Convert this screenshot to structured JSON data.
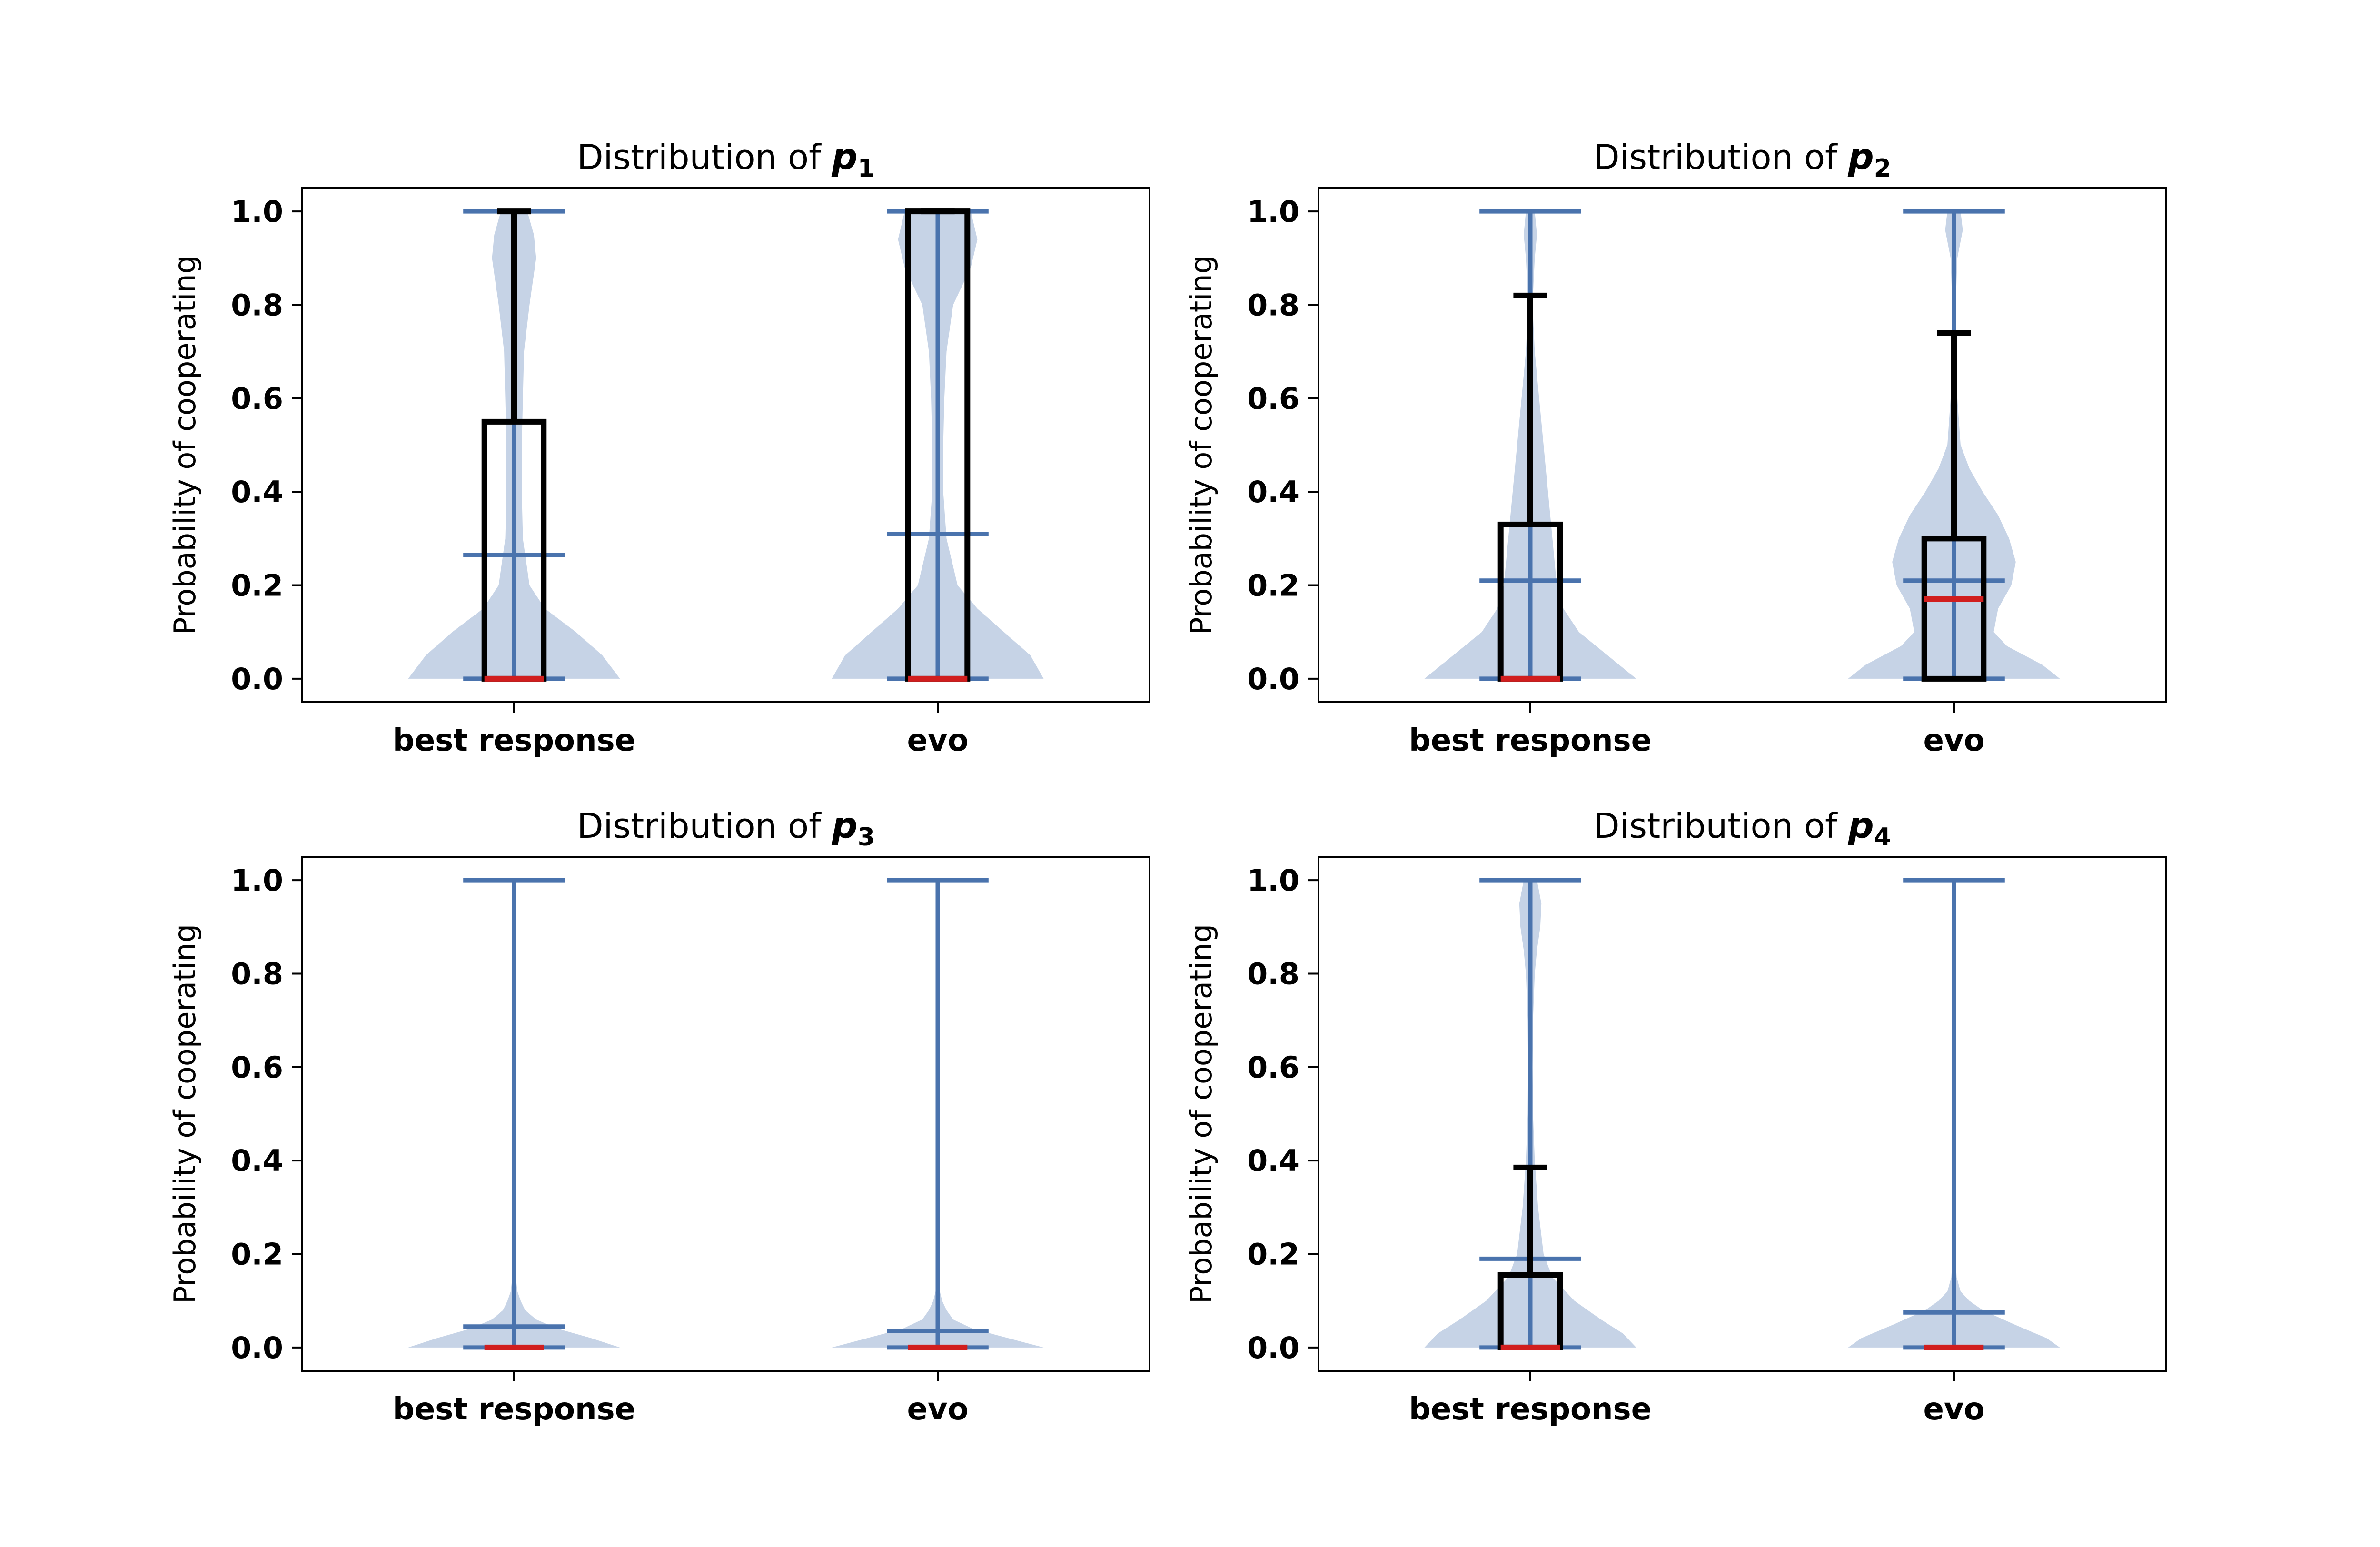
{
  "chart_data": [
    {
      "type": "violin",
      "title": {
        "prefix": "Distribution of",
        "symbol": "p",
        "subscript": "1"
      },
      "ylabel": "Probability of cooperating",
      "xlabel": "",
      "ylim": [
        -0.05,
        1.05
      ],
      "yticks": [
        "0.0",
        "0.2",
        "0.4",
        "0.6",
        "0.8",
        "1.0"
      ],
      "grid": false,
      "categories": [
        "best response",
        "evo"
      ],
      "series": [
        {
          "min": 0.0,
          "max": 1.0,
          "mean": 0.265,
          "median": 0.0,
          "box": {
            "q1": 0.0,
            "q3": 0.55,
            "whisker_high": 1.0
          },
          "density": [
            [
              0.0,
              0.48
            ],
            [
              0.05,
              0.4
            ],
            [
              0.1,
              0.28
            ],
            [
              0.15,
              0.14
            ],
            [
              0.2,
              0.07
            ],
            [
              0.3,
              0.04
            ],
            [
              0.4,
              0.035
            ],
            [
              0.5,
              0.035
            ],
            [
              0.6,
              0.04
            ],
            [
              0.7,
              0.045
            ],
            [
              0.8,
              0.07
            ],
            [
              0.9,
              0.1
            ],
            [
              0.95,
              0.09
            ],
            [
              1.0,
              0.06
            ]
          ]
        },
        {
          "min": 0.0,
          "max": 1.0,
          "mean": 0.31,
          "median": 0.0,
          "box": {
            "q1": 0.0,
            "q3": 1.0,
            "whisker_high": 1.0
          },
          "density": [
            [
              0.0,
              0.48
            ],
            [
              0.05,
              0.42
            ],
            [
              0.1,
              0.3
            ],
            [
              0.15,
              0.18
            ],
            [
              0.2,
              0.09
            ],
            [
              0.3,
              0.04
            ],
            [
              0.4,
              0.025
            ],
            [
              0.5,
              0.025
            ],
            [
              0.6,
              0.03
            ],
            [
              0.7,
              0.04
            ],
            [
              0.8,
              0.07
            ],
            [
              0.88,
              0.15
            ],
            [
              0.94,
              0.18
            ],
            [
              1.0,
              0.15
            ]
          ]
        }
      ]
    },
    {
      "type": "violin",
      "title": {
        "prefix": "Distribution of",
        "symbol": "p",
        "subscript": "2"
      },
      "ylabel": "Probability of cooperating",
      "xlabel": "",
      "ylim": [
        -0.05,
        1.05
      ],
      "yticks": [
        "0.0",
        "0.2",
        "0.4",
        "0.6",
        "0.8",
        "1.0"
      ],
      "grid": false,
      "categories": [
        "best response",
        "evo"
      ],
      "series": [
        {
          "min": 0.0,
          "max": 1.0,
          "mean": 0.21,
          "median": 0.0,
          "box": {
            "q1": 0.0,
            "q3": 0.33,
            "whisker_high": 0.82
          },
          "density": [
            [
              0.0,
              0.48
            ],
            [
              0.05,
              0.35
            ],
            [
              0.1,
              0.22
            ],
            [
              0.15,
              0.15
            ],
            [
              0.2,
              0.12
            ],
            [
              0.3,
              0.1
            ],
            [
              0.4,
              0.08
            ],
            [
              0.5,
              0.06
            ],
            [
              0.6,
              0.04
            ],
            [
              0.7,
              0.02
            ],
            [
              0.8,
              0.01
            ],
            [
              0.9,
              0.02
            ],
            [
              0.95,
              0.03
            ],
            [
              1.0,
              0.02
            ]
          ]
        },
        {
          "min": 0.0,
          "max": 1.0,
          "mean": 0.21,
          "median": 0.17,
          "box": {
            "q1": 0.0,
            "q3": 0.3,
            "whisker_high": 0.74
          },
          "density": [
            [
              0.0,
              0.48
            ],
            [
              0.03,
              0.4
            ],
            [
              0.07,
              0.24
            ],
            [
              0.1,
              0.18
            ],
            [
              0.15,
              0.2
            ],
            [
              0.2,
              0.26
            ],
            [
              0.25,
              0.28
            ],
            [
              0.3,
              0.25
            ],
            [
              0.35,
              0.2
            ],
            [
              0.4,
              0.13
            ],
            [
              0.45,
              0.07
            ],
            [
              0.5,
              0.03
            ],
            [
              0.6,
              0.015
            ],
            [
              0.7,
              0.01
            ],
            [
              0.8,
              0.008
            ],
            [
              0.9,
              0.015
            ],
            [
              0.96,
              0.04
            ],
            [
              1.0,
              0.03
            ]
          ]
        }
      ]
    },
    {
      "type": "violin",
      "title": {
        "prefix": "Distribution of",
        "symbol": "p",
        "subscript": "3"
      },
      "ylabel": "Probability of cooperating",
      "xlabel": "",
      "ylim": [
        -0.05,
        1.05
      ],
      "yticks": [
        "0.0",
        "0.2",
        "0.4",
        "0.6",
        "0.8",
        "1.0"
      ],
      "grid": false,
      "categories": [
        "best response",
        "evo"
      ],
      "series": [
        {
          "min": 0.0,
          "max": 1.0,
          "mean": 0.045,
          "median": 0.0,
          "box": null,
          "density": [
            [
              0.0,
              0.48
            ],
            [
              0.02,
              0.35
            ],
            [
              0.04,
              0.2
            ],
            [
              0.06,
              0.1
            ],
            [
              0.08,
              0.05
            ],
            [
              0.1,
              0.03
            ],
            [
              0.12,
              0.015
            ],
            [
              0.15,
              0.008
            ],
            [
              0.2,
              0.005
            ],
            [
              0.4,
              0.004
            ],
            [
              0.6,
              0.004
            ],
            [
              0.8,
              0.004
            ],
            [
              1.0,
              0.004
            ]
          ]
        },
        {
          "min": 0.0,
          "max": 1.0,
          "mean": 0.035,
          "median": 0.0,
          "box": null,
          "density": [
            [
              0.0,
              0.48
            ],
            [
              0.02,
              0.32
            ],
            [
              0.04,
              0.16
            ],
            [
              0.06,
              0.07
            ],
            [
              0.08,
              0.04
            ],
            [
              0.1,
              0.02
            ],
            [
              0.12,
              0.01
            ],
            [
              0.15,
              0.005
            ],
            [
              0.2,
              0.004
            ],
            [
              0.4,
              0.004
            ],
            [
              0.6,
              0.004
            ],
            [
              0.8,
              0.004
            ],
            [
              1.0,
              0.004
            ]
          ]
        }
      ]
    },
    {
      "type": "violin",
      "title": {
        "prefix": "Distribution of",
        "symbol": "p",
        "subscript": "4"
      },
      "ylabel": "Probability of cooperating",
      "xlabel": "",
      "ylim": [
        -0.05,
        1.05
      ],
      "yticks": [
        "0.0",
        "0.2",
        "0.4",
        "0.6",
        "0.8",
        "1.0"
      ],
      "grid": false,
      "categories": [
        "best response",
        "evo"
      ],
      "series": [
        {
          "min": 0.0,
          "max": 1.0,
          "mean": 0.19,
          "median": 0.0,
          "box": {
            "q1": 0.0,
            "q3": 0.155,
            "whisker_high": 0.385
          },
          "density": [
            [
              0.0,
              0.48
            ],
            [
              0.03,
              0.42
            ],
            [
              0.06,
              0.32
            ],
            [
              0.1,
              0.2
            ],
            [
              0.15,
              0.1
            ],
            [
              0.2,
              0.06
            ],
            [
              0.3,
              0.035
            ],
            [
              0.4,
              0.02
            ],
            [
              0.5,
              0.012
            ],
            [
              0.6,
              0.01
            ],
            [
              0.7,
              0.012
            ],
            [
              0.8,
              0.02
            ],
            [
              0.85,
              0.03
            ],
            [
              0.9,
              0.045
            ],
            [
              0.95,
              0.05
            ],
            [
              1.0,
              0.03
            ]
          ]
        },
        {
          "min": 0.0,
          "max": 1.0,
          "mean": 0.075,
          "median": 0.0,
          "box": null,
          "density": [
            [
              0.0,
              0.48
            ],
            [
              0.02,
              0.42
            ],
            [
              0.05,
              0.27
            ],
            [
              0.08,
              0.13
            ],
            [
              0.1,
              0.07
            ],
            [
              0.12,
              0.03
            ],
            [
              0.15,
              0.012
            ],
            [
              0.2,
              0.006
            ],
            [
              0.4,
              0.004
            ],
            [
              0.6,
              0.004
            ],
            [
              0.8,
              0.004
            ],
            [
              1.0,
              0.004
            ]
          ]
        }
      ]
    }
  ],
  "colors": {
    "violin_fill": "#c6d3e6",
    "violin_lines": "#4a73ad",
    "box": "#000000",
    "median": "#d11e1e",
    "axes": "#000000"
  }
}
